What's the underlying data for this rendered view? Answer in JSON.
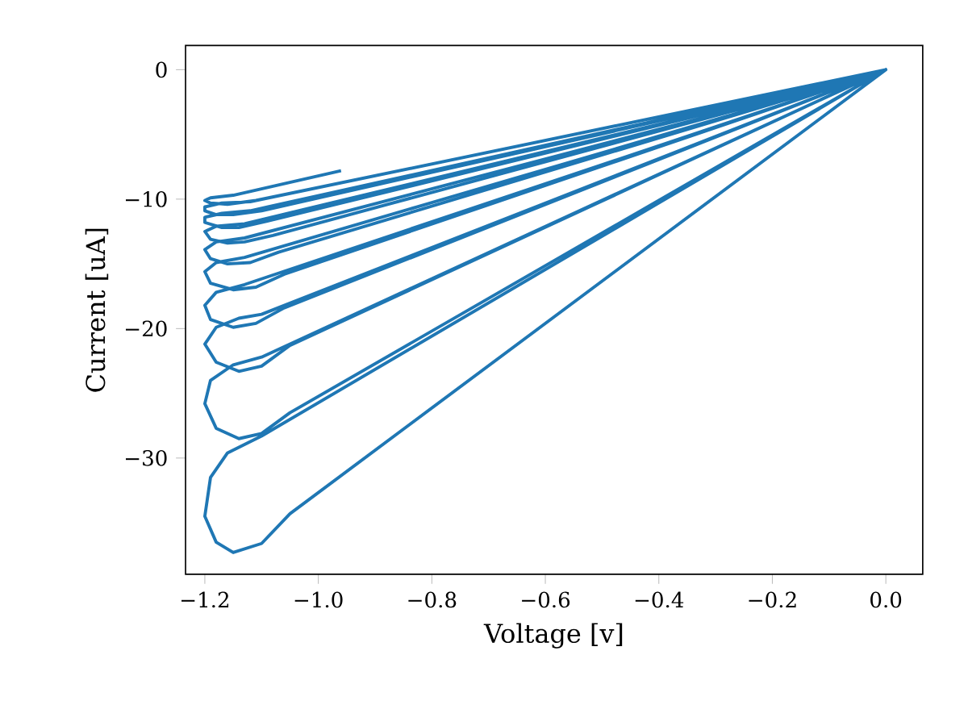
{
  "chart_data": {
    "type": "line",
    "xlabel": "Voltage [v]",
    "ylabel": "Current [uA]",
    "xlim": [
      -1.234,
      0.065
    ],
    "ylim": [
      -38.98,
      1.87
    ],
    "xticks": [
      {
        "value": -1.2,
        "label": "−1.2"
      },
      {
        "value": -1.0,
        "label": "−1.0"
      },
      {
        "value": -0.8,
        "label": "−0.8"
      },
      {
        "value": -0.6,
        "label": "−0.6"
      },
      {
        "value": -0.4,
        "label": "−0.4"
      },
      {
        "value": -0.2,
        "label": "−0.2"
      },
      {
        "value": 0.0,
        "label": "0.0"
      }
    ],
    "yticks": [
      {
        "value": -30,
        "label": "−30"
      },
      {
        "value": -20,
        "label": "−20"
      },
      {
        "value": -10,
        "label": "−10"
      },
      {
        "value": 0,
        "label": "0"
      }
    ],
    "marker": "none",
    "line_style": "solid",
    "series": [
      {
        "color": "#1f77b4",
        "x": [
          0,
          -1.05,
          -1.1,
          -1.15,
          -1.18,
          -1.2,
          -1.19,
          -1.16,
          -1.1,
          0,
          -1.05,
          -1.1,
          -1.14,
          -1.18,
          -1.2,
          -1.19,
          -1.15,
          -1.1,
          0,
          -1.05,
          -1.1,
          -1.14,
          -1.18,
          -1.2,
          -1.18,
          -1.14,
          -1.1,
          0,
          -1.06,
          -1.11,
          -1.15,
          -1.19,
          -1.2,
          -1.18,
          -1.13,
          0,
          -1.06,
          -1.11,
          -1.15,
          -1.19,
          -1.2,
          -1.18,
          -1.13,
          0,
          -1.07,
          -1.12,
          -1.16,
          -1.19,
          -1.2,
          -1.18,
          -1.13,
          0,
          -1.08,
          -1.13,
          -1.16,
          -1.19,
          -1.2,
          -1.18,
          -1.13,
          0,
          -1.09,
          -1.14,
          -1.17,
          -1.2,
          -1.2,
          -1.17,
          -1.12,
          0,
          -1.1,
          -1.15,
          -1.18,
          -1.2,
          -1.2,
          -1.17,
          -1.12,
          0,
          -1.11,
          -1.16,
          -1.19,
          -1.2,
          -1.19,
          -1.15,
          -0.96
        ],
        "values": [
          0,
          -34.3,
          -36.6,
          -37.3,
          -36.5,
          -34.5,
          -31.5,
          -29.6,
          -28.3,
          0,
          -26.5,
          -28.1,
          -28.5,
          -27.7,
          -25.8,
          -24.0,
          -22.8,
          -22.2,
          0,
          -21.3,
          -22.9,
          -23.3,
          -22.6,
          -21.2,
          -19.9,
          -19.2,
          -18.9,
          0,
          -18.4,
          -19.6,
          -19.9,
          -19.3,
          -18.2,
          -17.2,
          -16.6,
          0,
          -15.8,
          -16.8,
          -17.0,
          -16.5,
          -15.6,
          -14.9,
          -14.5,
          0,
          -14.1,
          -14.9,
          -15.0,
          -14.6,
          -13.9,
          -13.3,
          -13.0,
          0,
          -12.8,
          -13.3,
          -13.4,
          -13.1,
          -12.5,
          -12.1,
          -11.9,
          0,
          -11.7,
          -12.2,
          -12.2,
          -11.8,
          -11.4,
          -11.1,
          -10.9,
          0,
          -10.9,
          -11.2,
          -11.2,
          -10.9,
          -10.6,
          -10.3,
          -10.2,
          0,
          -10.1,
          -10.4,
          -10.3,
          -10.1,
          -9.9,
          -9.7,
          -7.8
        ]
      }
    ]
  }
}
